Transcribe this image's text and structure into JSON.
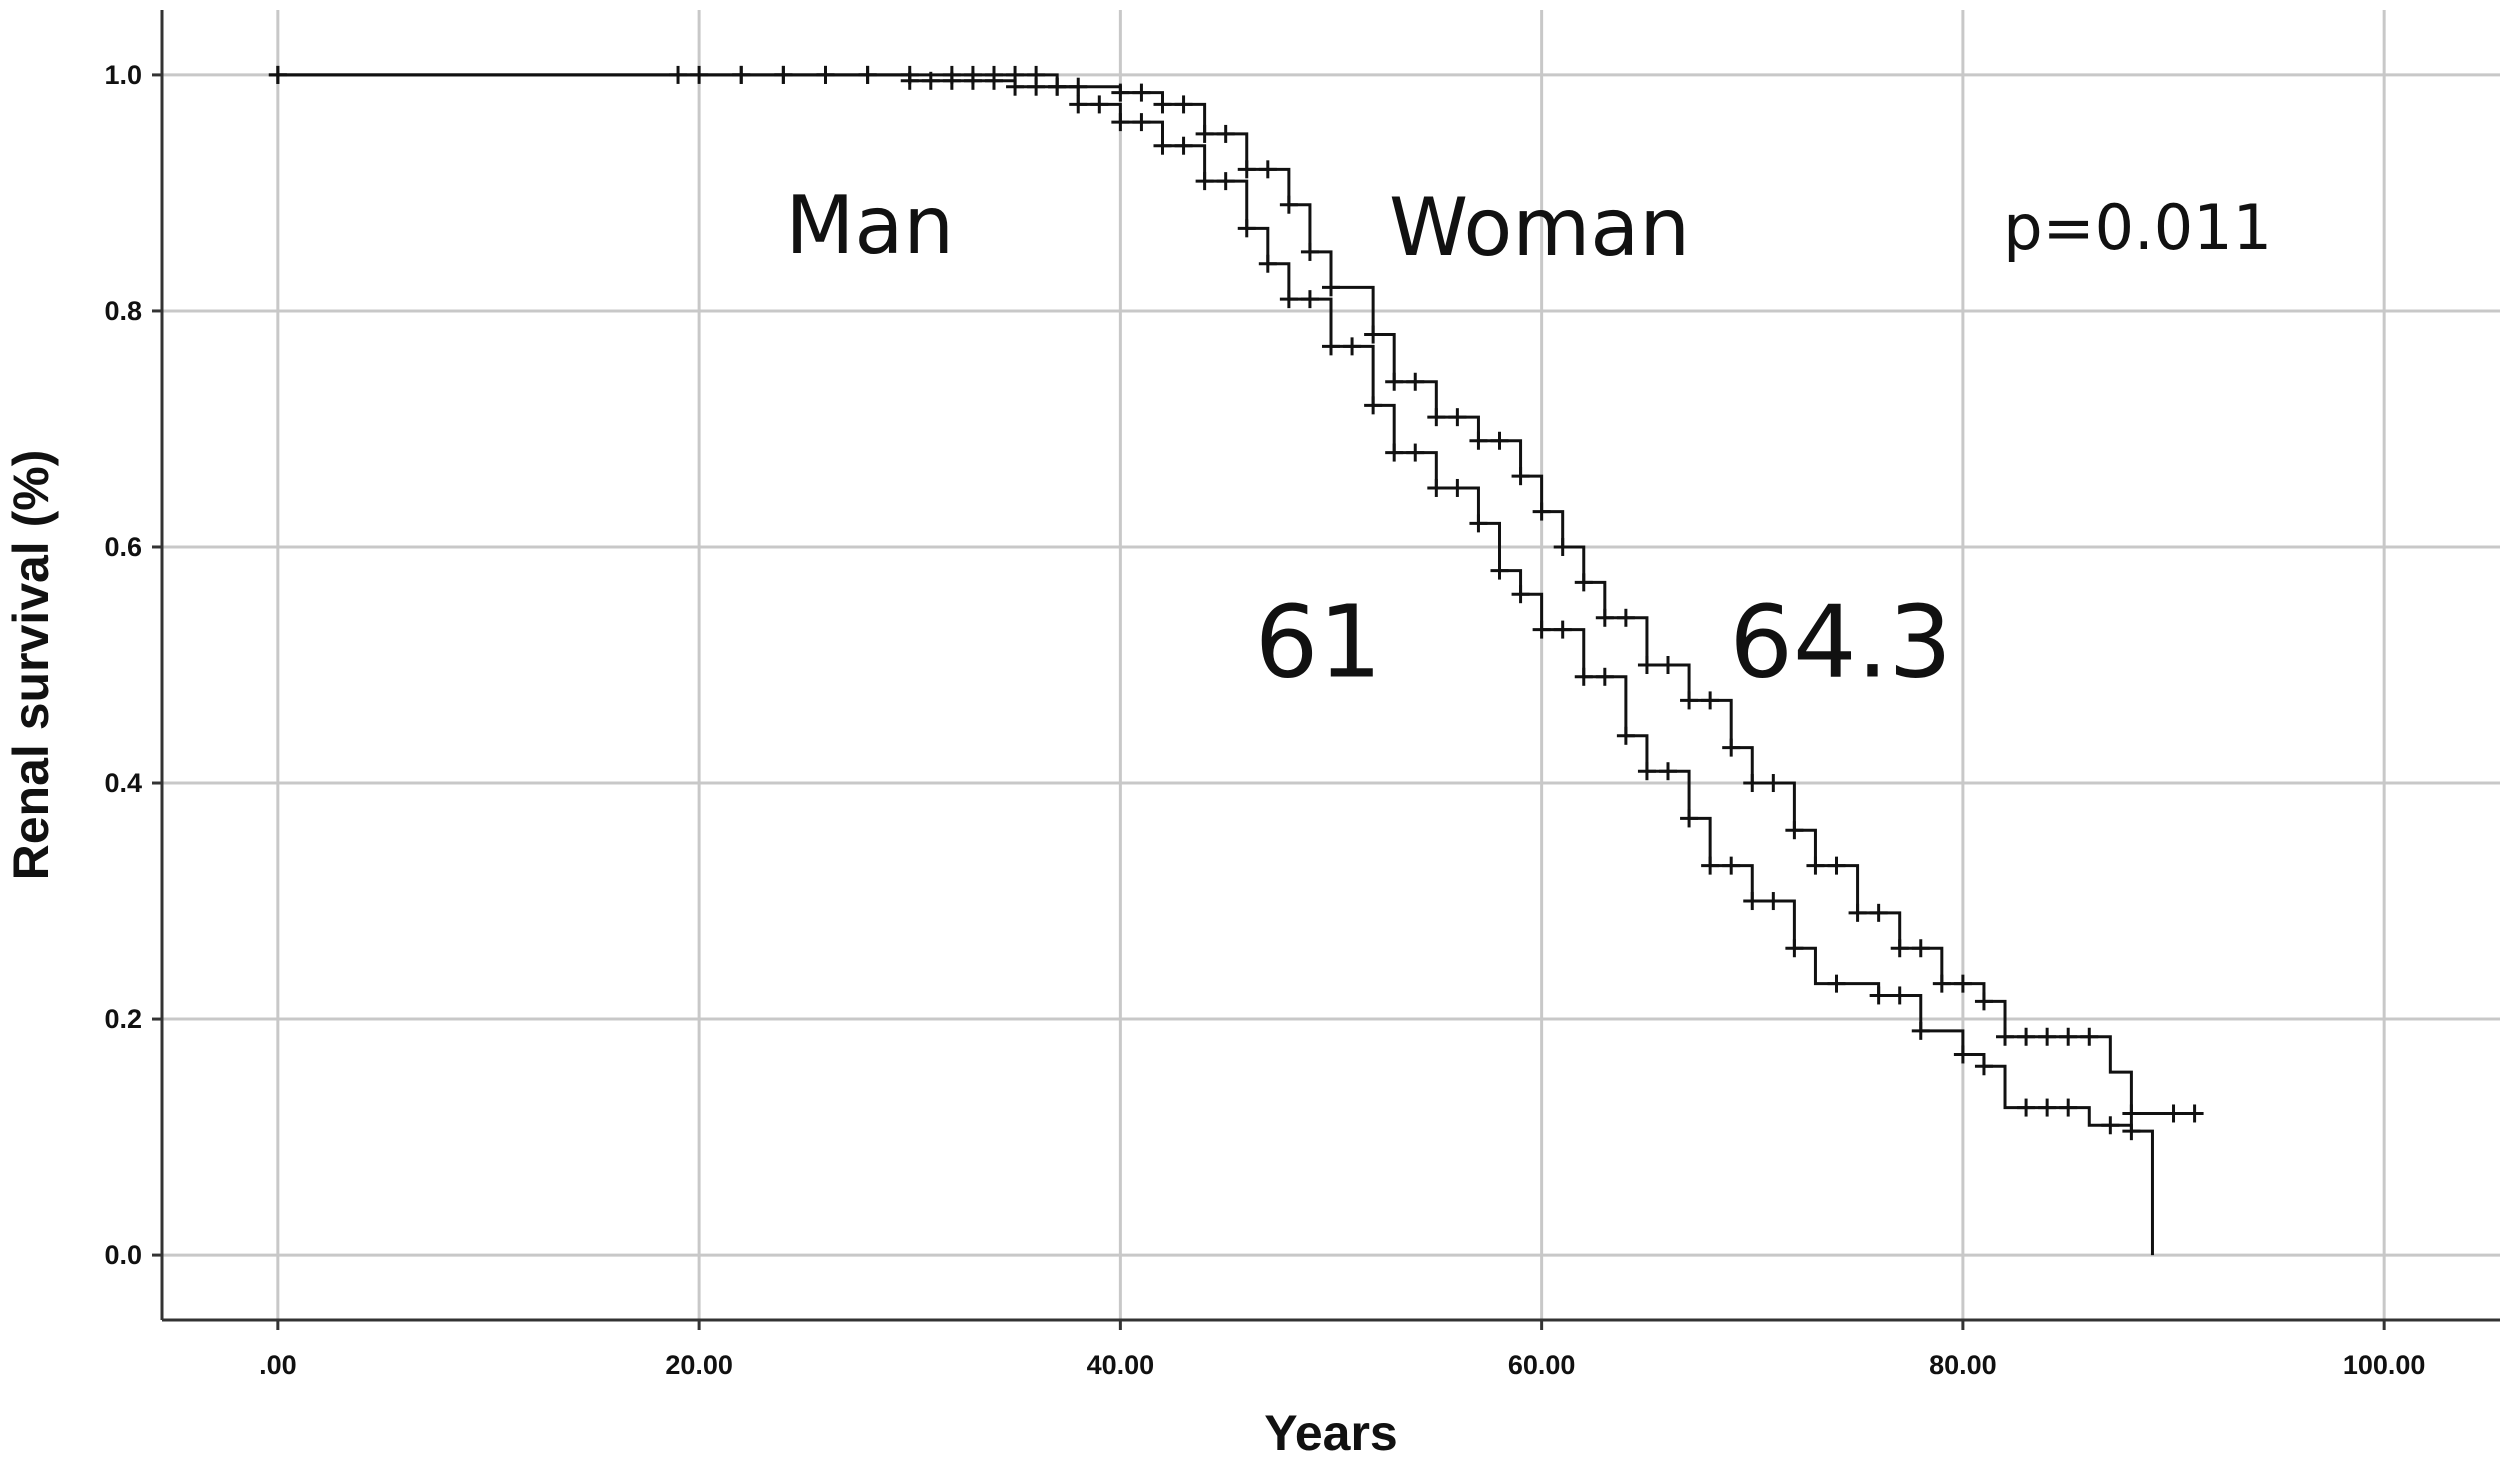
{
  "chart_data": {
    "type": "line",
    "subtype": "kaplan-meier",
    "title": "",
    "xlabel": "Years",
    "ylabel": "Renal survival (%)",
    "xlim": [
      -5.5,
      105.5
    ],
    "ylim": [
      -0.055,
      1.055
    ],
    "x_ticks": [
      0,
      20,
      40,
      60,
      80,
      100
    ],
    "x_tick_labels": [
      ".00",
      "20.00",
      "40.00",
      "60.00",
      "80.00",
      "100.00"
    ],
    "y_ticks": [
      0.0,
      0.2,
      0.4,
      0.6,
      0.8,
      1.0
    ],
    "y_tick_labels": [
      "0.0",
      "0.2",
      "0.4",
      "0.6",
      "0.8",
      "1.0"
    ],
    "grid": true,
    "legend": "none",
    "annotations": [
      {
        "text": "Man",
        "x": 28.1,
        "y": 0.873,
        "size": "medium"
      },
      {
        "text": "Woman",
        "x": 59.9,
        "y": 0.871,
        "size": "medium"
      },
      {
        "text": "p=0.011",
        "x": 88.3,
        "y": 0.871,
        "size": "small"
      },
      {
        "text": "61",
        "x": 49.4,
        "y": 0.52,
        "size": "large"
      },
      {
        "text": "64.3",
        "x": 74.2,
        "y": 0.52,
        "size": "large"
      }
    ],
    "series": [
      {
        "points": [
          [
            0,
            1.0
          ],
          [
            20,
            1.0
          ],
          [
            30,
            0.995
          ],
          [
            35,
            0.99
          ],
          [
            38,
            0.975
          ],
          [
            40,
            0.96
          ],
          [
            42,
            0.94
          ],
          [
            44,
            0.91
          ],
          [
            46,
            0.87
          ],
          [
            47,
            0.84
          ],
          [
            48,
            0.81
          ],
          [
            50,
            0.77
          ],
          [
            52,
            0.72
          ],
          [
            53,
            0.68
          ],
          [
            55,
            0.65
          ],
          [
            57,
            0.62
          ],
          [
            58,
            0.58
          ],
          [
            59,
            0.56
          ],
          [
            60,
            0.53
          ],
          [
            62,
            0.49
          ],
          [
            64,
            0.44
          ],
          [
            65,
            0.41
          ],
          [
            67,
            0.37
          ],
          [
            68,
            0.33
          ],
          [
            70,
            0.3
          ],
          [
            72,
            0.26
          ],
          [
            73,
            0.23
          ],
          [
            76,
            0.22
          ],
          [
            78,
            0.19
          ],
          [
            80,
            0.17
          ],
          [
            81,
            0.16
          ],
          [
            82,
            0.125
          ],
          [
            85,
            0.125
          ],
          [
            86,
            0.11
          ],
          [
            88,
            0.105
          ],
          [
            89,
            0.0
          ]
        ],
        "censor_x": [
          0,
          20,
          22,
          24,
          26,
          28,
          30,
          31,
          32,
          33,
          34,
          35,
          36,
          37,
          38,
          39,
          40,
          41,
          42,
          43,
          44,
          45,
          46,
          47,
          48,
          49,
          50,
          51,
          52,
          53,
          54,
          55,
          56,
          57,
          58,
          59,
          60,
          61,
          62,
          63,
          64,
          65,
          66,
          67,
          68,
          69,
          70,
          71,
          72,
          74,
          76,
          77,
          78,
          80,
          81,
          83,
          84,
          85,
          87,
          88
        ]
      },
      {
        "points": [
          [
            0,
            1.0
          ],
          [
            20,
            1.0
          ],
          [
            35,
            1.0
          ],
          [
            37,
            0.99
          ],
          [
            40,
            0.985
          ],
          [
            42,
            0.975
          ],
          [
            44,
            0.95
          ],
          [
            46,
            0.92
          ],
          [
            48,
            0.89
          ],
          [
            49,
            0.85
          ],
          [
            50,
            0.82
          ],
          [
            52,
            0.78
          ],
          [
            53,
            0.74
          ],
          [
            55,
            0.71
          ],
          [
            57,
            0.69
          ],
          [
            59,
            0.66
          ],
          [
            60,
            0.63
          ],
          [
            61,
            0.6
          ],
          [
            62,
            0.57
          ],
          [
            63,
            0.54
          ],
          [
            65,
            0.5
          ],
          [
            67,
            0.47
          ],
          [
            69,
            0.43
          ],
          [
            70,
            0.4
          ],
          [
            72,
            0.36
          ],
          [
            73,
            0.33
          ],
          [
            75,
            0.29
          ],
          [
            77,
            0.26
          ],
          [
            79,
            0.23
          ],
          [
            81,
            0.215
          ],
          [
            82,
            0.185
          ],
          [
            86,
            0.185
          ],
          [
            87,
            0.155
          ],
          [
            88,
            0.12
          ],
          [
            91,
            0.12
          ]
        ],
        "censor_x": [
          0,
          19,
          22,
          24,
          26,
          28,
          30,
          32,
          33,
          34,
          35,
          36,
          37,
          38,
          40,
          41,
          42,
          43,
          44,
          45,
          46,
          47,
          48,
          49,
          50,
          52,
          53,
          54,
          55,
          56,
          57,
          58,
          59,
          60,
          61,
          62,
          63,
          64,
          65,
          66,
          67,
          68,
          69,
          70,
          71,
          72,
          73,
          74,
          75,
          76,
          77,
          78,
          79,
          80,
          81,
          82,
          83,
          84,
          85,
          86,
          88,
          90,
          91
        ]
      }
    ]
  }
}
